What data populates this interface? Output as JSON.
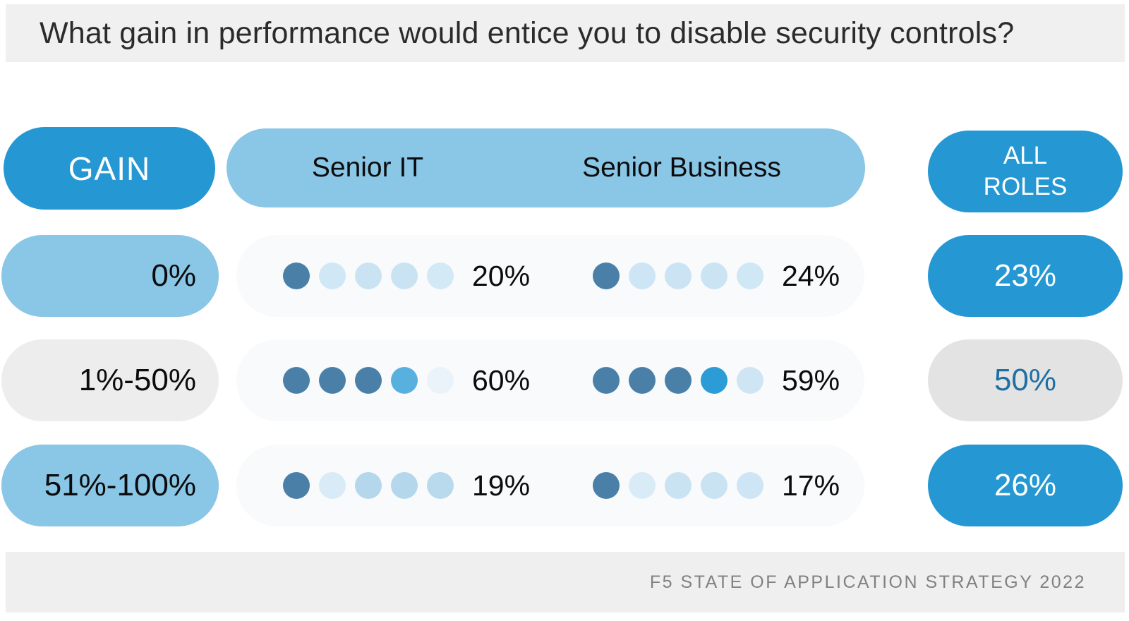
{
  "title": "What gain in performance would entice you to disable security controls?",
  "header": {
    "gain_label": "GAIN",
    "senior_it_label": "Senior IT",
    "senior_business_label": "Senior Business",
    "all_roles_label": "ALL ROLES"
  },
  "footer": {
    "source": "F5 STATE OF APPLICATION STRATEGY 2022"
  },
  "colors": {
    "accent_blue": "#2598d4",
    "accent_lightblue": "#8ac6e6",
    "pill_gray_left": "#ededed",
    "pill_gray_right": "#e3e3e3",
    "panel_bg": "#f8fafb",
    "dot_dark": "#4a80a8",
    "dot_light": "#cde5f4",
    "title_bar_bg": "#f0f0f0",
    "footer_bg": "#efefef",
    "footer_text": "#818181",
    "gray_pill_text_blue": "#1f6fa4"
  },
  "chart_data": {
    "type": "table",
    "title": "What gain in performance would entice you to disable security controls?",
    "categories": [
      "0%",
      "1%-50%",
      "51%-100%"
    ],
    "series": [
      {
        "name": "Senior IT",
        "values": [
          20,
          60,
          19
        ]
      },
      {
        "name": "Senior Business",
        "values": [
          24,
          59,
          17
        ]
      },
      {
        "name": "All Roles",
        "values": [
          23,
          50,
          26
        ]
      }
    ],
    "dot_scale": "5 dots per cell, each dot represents 20%",
    "source": "F5 STATE OF APPLICATION STRATEGY 2022"
  },
  "rows": [
    {
      "gain": "0%",
      "senior_it": {
        "pct": "20%",
        "dots": [
          "#4a80a8",
          "#d0e8f6",
          "#c9e3f3",
          "#c9e3f3",
          "#d3e9f6"
        ]
      },
      "senior_business": {
        "pct": "24%",
        "dots": [
          "#4a80a8",
          "#cde5f4",
          "#cbe4f4",
          "#cbe4f4",
          "#d0e7f5"
        ]
      },
      "all_roles": {
        "pct": "23%"
      }
    },
    {
      "gain": "1%-50%",
      "senior_it": {
        "pct": "60%",
        "dots": [
          "#4a80a8",
          "#4a80a8",
          "#4a80a8",
          "#58b0df",
          "#eaf3f9"
        ]
      },
      "senior_business": {
        "pct": "59%",
        "dots": [
          "#4a80a8",
          "#4a80a8",
          "#4a80a8",
          "#2b9cd5",
          "#cfe5f4"
        ]
      },
      "all_roles": {
        "pct": "50%"
      }
    },
    {
      "gain": "51%-100%",
      "senior_it": {
        "pct": "19%",
        "dots": [
          "#4a80a8",
          "#d8ebf7",
          "#b5d7ec",
          "#b5d7ec",
          "#b9d9ed"
        ]
      },
      "senior_business": {
        "pct": "17%",
        "dots": [
          "#4a80a8",
          "#d8ebf7",
          "#c9e3f3",
          "#c9e3f3",
          "#cde5f4"
        ]
      },
      "all_roles": {
        "pct": "26%"
      }
    }
  ]
}
